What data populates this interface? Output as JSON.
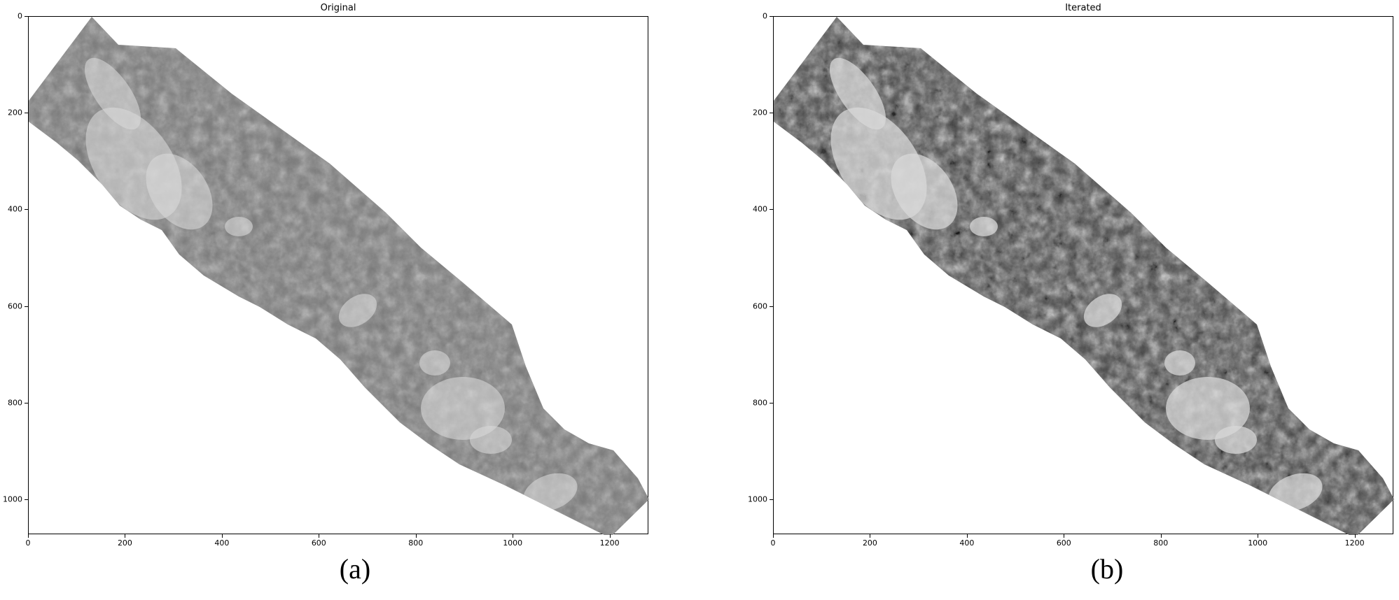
{
  "panels": [
    {
      "title": "Original",
      "caption": "(a)",
      "xticks": [
        "0",
        "200",
        "400",
        "600",
        "800",
        "1000",
        "1200"
      ],
      "yticks": [
        "0",
        "200",
        "400",
        "600",
        "800",
        "1000"
      ],
      "xlim": [
        0,
        1280
      ],
      "ylim": [
        0,
        1072
      ],
      "image_description": "grayscale lunar surface strip, diagonal",
      "contrast": "normal"
    },
    {
      "title": "Iterated",
      "caption": "(b)",
      "xticks": [
        "0",
        "200",
        "400",
        "600",
        "800",
        "1000",
        "1200"
      ],
      "yticks": [
        "0",
        "200",
        "400",
        "600",
        "800",
        "1000"
      ],
      "xlim": [
        0,
        1280
      ],
      "ylim": [
        0,
        1072
      ],
      "image_description": "grayscale lunar surface strip, diagonal, enhanced",
      "contrast": "enhanced"
    }
  ],
  "colors": {
    "strip_dark": "#4a4a4a",
    "strip_mid": "#7a7a7a",
    "strip_light": "#d8d8d8"
  }
}
